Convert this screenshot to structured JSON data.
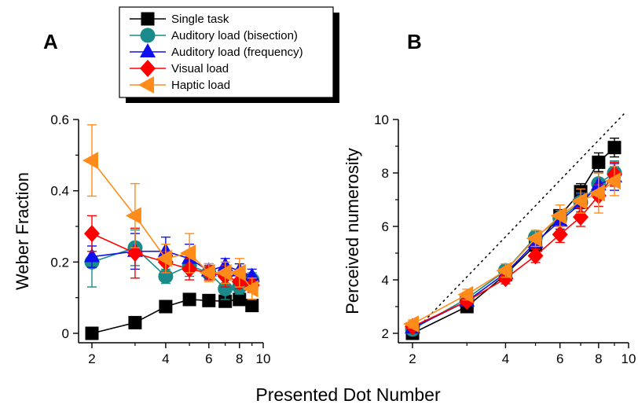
{
  "xlabel": "Presented Dot Number",
  "legend": [
    {
      "name": "Single task",
      "color": "#000000",
      "marker": "square"
    },
    {
      "name": "Auditory load (bisection)",
      "color": "#1a8a8a",
      "marker": "circle"
    },
    {
      "name": "Auditory load (frequency)",
      "color": "#1010ee",
      "marker": "triangle-up"
    },
    {
      "name": "Visual load",
      "color": "#ff0000",
      "marker": "diamond"
    },
    {
      "name": "Haptic load",
      "color": "#ff8c1a",
      "marker": "triangle-left"
    }
  ],
  "chart_data": [
    {
      "type": "line",
      "panel": "A",
      "ylabel": "Weber Fraction",
      "xscale": "log",
      "xlim": [
        1.85,
        10.5
      ],
      "ylim": [
        -0.02,
        0.62
      ],
      "xticks": [
        2,
        4,
        6,
        8,
        10
      ],
      "xtick_labels": [
        "2",
        "4",
        "6",
        "8",
        "10"
      ],
      "yticks": [
        0,
        0.2,
        0.4,
        0.6
      ],
      "ytick_labels": [
        "0",
        "0.2",
        "0.4",
        "0.6"
      ],
      "x": [
        2,
        3,
        4,
        5,
        6,
        7,
        8,
        9
      ],
      "series": [
        {
          "name": "Single task",
          "values": [
            0.0,
            0.03,
            0.075,
            0.095,
            0.092,
            0.09,
            0.095,
            0.078
          ],
          "errors": [
            0.005,
            0.008,
            0.01,
            0.01,
            0.008,
            0.01,
            0.01,
            0.008
          ]
        },
        {
          "name": "Auditory load (bisection)",
          "values": [
            0.2,
            0.24,
            0.16,
            0.19,
            0.17,
            0.125,
            0.13,
            0.15
          ],
          "errors": [
            0.07,
            0.05,
            0.02,
            0.03,
            0.02,
            0.03,
            0.02,
            0.02
          ]
        },
        {
          "name": "Auditory load (frequency)",
          "values": [
            0.215,
            0.23,
            0.23,
            0.21,
            0.175,
            0.19,
            0.175,
            0.16
          ],
          "errors": [
            0.03,
            0.05,
            0.04,
            0.04,
            0.02,
            0.02,
            0.02,
            0.02
          ]
        },
        {
          "name": "Visual load",
          "values": [
            0.28,
            0.225,
            0.2,
            0.18,
            0.17,
            0.16,
            0.145,
            0.135
          ],
          "errors": [
            0.05,
            0.07,
            0.03,
            0.03,
            0.02,
            0.03,
            0.02,
            0.02
          ]
        },
        {
          "name": "Haptic load",
          "values": [
            0.485,
            0.33,
            0.21,
            0.225,
            0.17,
            0.17,
            0.17,
            0.125
          ],
          "errors": [
            0.1,
            0.09,
            0.04,
            0.055,
            0.025,
            0.03,
            0.04,
            0.03
          ]
        }
      ]
    },
    {
      "type": "line",
      "panel": "B",
      "ylabel": "Perceived numerosity",
      "xscale": "log",
      "xlim": [
        1.85,
        10.5
      ],
      "ylim": [
        1.9,
        10.2
      ],
      "xticks": [
        2,
        4,
        6,
        8,
        10
      ],
      "xtick_labels": [
        "2",
        "4",
        "6",
        "8",
        "10"
      ],
      "yticks": [
        2,
        4,
        6,
        8,
        10
      ],
      "ytick_labels": [
        "2",
        "4",
        "6",
        "8",
        "10"
      ],
      "identity_line": true,
      "x": [
        2,
        3,
        4,
        5,
        6,
        7,
        8,
        9
      ],
      "series": [
        {
          "name": "Single task",
          "values": [
            2.0,
            3.0,
            4.2,
            5.3,
            6.4,
            7.3,
            8.4,
            8.95
          ],
          "errors": [
            0.1,
            0.15,
            0.15,
            0.2,
            0.2,
            0.3,
            0.35,
            0.35
          ]
        },
        {
          "name": "Auditory load (bisection)",
          "values": [
            2.15,
            3.3,
            4.35,
            5.6,
            6.3,
            6.9,
            7.6,
            8.0
          ],
          "errors": [
            0.1,
            0.15,
            0.2,
            0.25,
            0.3,
            0.35,
            0.4,
            0.45
          ]
        },
        {
          "name": "Auditory load (frequency)",
          "values": [
            2.2,
            3.2,
            4.25,
            5.4,
            6.2,
            6.85,
            7.55,
            7.85
          ],
          "errors": [
            0.1,
            0.15,
            0.2,
            0.25,
            0.3,
            0.35,
            0.45,
            0.5
          ]
        },
        {
          "name": "Visual load",
          "values": [
            2.25,
            3.2,
            4.05,
            4.9,
            5.7,
            6.35,
            7.15,
            7.95
          ],
          "errors": [
            0.1,
            0.15,
            0.2,
            0.25,
            0.3,
            0.35,
            0.4,
            0.45
          ]
        },
        {
          "name": "Haptic load",
          "values": [
            2.35,
            3.45,
            4.35,
            5.55,
            6.4,
            6.95,
            7.25,
            7.7
          ],
          "errors": [
            0.15,
            0.2,
            0.25,
            0.3,
            0.4,
            0.45,
            0.75,
            0.55
          ]
        }
      ]
    }
  ]
}
